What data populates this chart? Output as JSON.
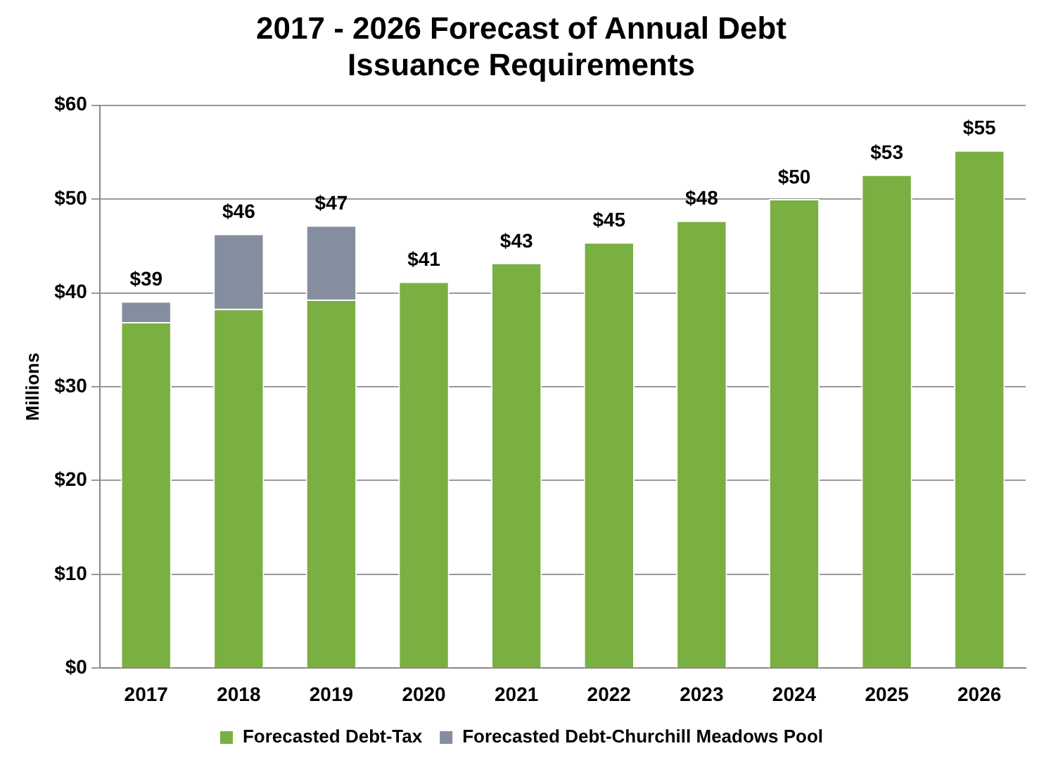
{
  "chart_data": {
    "type": "bar",
    "title": "2017 - 2026 Forecast of Annual Debt Issuance Requirements",
    "ylabel": "Millions",
    "categories": [
      "2017",
      "2018",
      "2019",
      "2020",
      "2021",
      "2022",
      "2023",
      "2024",
      "2025",
      "2026"
    ],
    "stacked": true,
    "series": [
      {
        "name": "Forecasted Debt-Tax",
        "color": "#7aaf42",
        "values": [
          36.9,
          38.3,
          39.3,
          41.2,
          43.2,
          45.4,
          47.7,
          50.0,
          52.6,
          55.2
        ]
      },
      {
        "name": "Forecasted Debt-Churchill Meadows Pool",
        "color": "#848e9e",
        "values": [
          2.2,
          8.0,
          7.9,
          null,
          null,
          null,
          null,
          null,
          null,
          null
        ]
      }
    ],
    "totals": [
      "$39",
      "$46",
      "$47",
      "$41",
      "$43",
      "$45",
      "$48",
      "$50",
      "$53",
      "$55"
    ],
    "ylim": [
      0,
      60
    ],
    "yticks": [
      {
        "value": 0,
        "label": "$0"
      },
      {
        "value": 10,
        "label": "$10"
      },
      {
        "value": 20,
        "label": "$20"
      },
      {
        "value": 30,
        "label": "$30"
      },
      {
        "value": 40,
        "label": "$40"
      },
      {
        "value": 50,
        "label": "$50"
      },
      {
        "value": 60,
        "label": "$60"
      }
    ],
    "grid": "y",
    "legend": "bottom"
  }
}
